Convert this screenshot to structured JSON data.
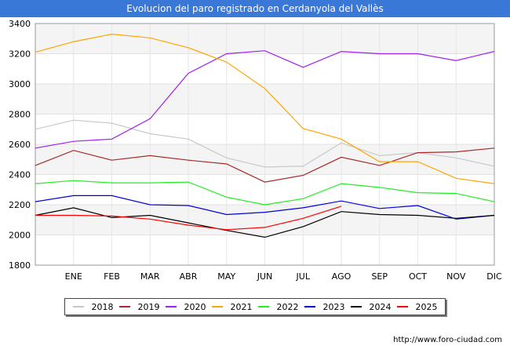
{
  "title": "Evolucion del paro registrado en Cerdanyola del Vallès",
  "footer": "http://www.foro-ciudad.com",
  "chart_data": {
    "type": "line",
    "categories": [
      "",
      "ENE",
      "FEB",
      "MAR",
      "ABR",
      "MAY",
      "JUN",
      "JUL",
      "AGO",
      "SEP",
      "OCT",
      "NOV",
      "DIC"
    ],
    "ylim": [
      1800,
      3400
    ],
    "yticks": [
      1800,
      2000,
      2200,
      2400,
      2600,
      2800,
      3000,
      3200,
      3400
    ],
    "grid": true,
    "legend_position": "bottom",
    "series": [
      {
        "name": "2018",
        "color": "#c8c8c8",
        "values": [
          2700,
          2760,
          2740,
          2670,
          2635,
          2510,
          2450,
          2455,
          2610,
          2525,
          2545,
          2510,
          2455
        ]
      },
      {
        "name": "2019",
        "color": "#a52a2a",
        "values": [
          2460,
          2560,
          2495,
          2525,
          2495,
          2470,
          2350,
          2395,
          2515,
          2460,
          2545,
          2550,
          2575
        ]
      },
      {
        "name": "2020",
        "color": "#a020f0",
        "values": [
          2575,
          2620,
          2635,
          2770,
          3070,
          3200,
          3220,
          3110,
          3215,
          3200,
          3200,
          3155,
          3215
        ]
      },
      {
        "name": "2021",
        "color": "#ffa500",
        "values": [
          3210,
          3280,
          3330,
          3305,
          3240,
          3145,
          2970,
          2705,
          2635,
          2485,
          2485,
          2375,
          2340
        ]
      },
      {
        "name": "2022",
        "color": "#22ee22",
        "values": [
          2340,
          2360,
          2345,
          2345,
          2350,
          2250,
          2200,
          2240,
          2340,
          2315,
          2280,
          2275,
          2220
        ]
      },
      {
        "name": "2023",
        "color": "#0000dd",
        "values": [
          2220,
          2260,
          2260,
          2200,
          2195,
          2135,
          2150,
          2180,
          2225,
          2175,
          2195,
          2105,
          2130
        ]
      },
      {
        "name": "2024",
        "color": "#000000",
        "values": [
          2130,
          2180,
          2115,
          2130,
          2080,
          2030,
          1985,
          2055,
          2155,
          2135,
          2130,
          2110,
          2130
        ]
      },
      {
        "name": "2025",
        "color": "#ff0000",
        "values": [
          2130,
          2130,
          2125,
          2105,
          2065,
          2035,
          2050,
          2110,
          2190,
          null,
          null,
          null,
          null
        ]
      }
    ]
  }
}
